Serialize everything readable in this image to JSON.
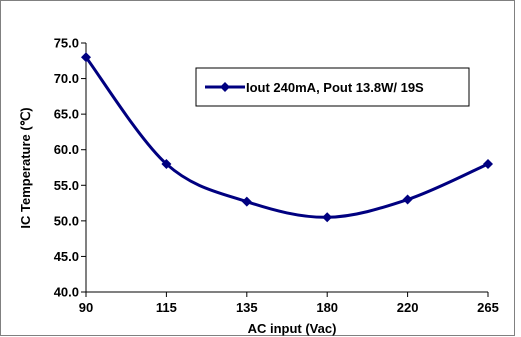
{
  "chart_data": {
    "type": "line",
    "title": "",
    "xlabel": "AC input (Vac)",
    "ylabel": "IC Temperature (℃)",
    "categories": [
      "90",
      "115",
      "135",
      "180",
      "220",
      "265"
    ],
    "series": [
      {
        "name": "Iout 240mA, Pout 13.8W/ 19S",
        "values": [
          73.0,
          58.0,
          52.7,
          50.5,
          53.0,
          58.0
        ]
      }
    ],
    "ylim": [
      40.0,
      75.0
    ],
    "yticks": [
      "40.0",
      "45.0",
      "50.0",
      "55.0",
      "60.0",
      "65.0",
      "70.0",
      "75.0"
    ],
    "grid": false,
    "legend_position": "top-right",
    "colors": {
      "series": "#000080",
      "axis": "#000000",
      "frame": "#808080",
      "background": "#ffffff"
    }
  }
}
